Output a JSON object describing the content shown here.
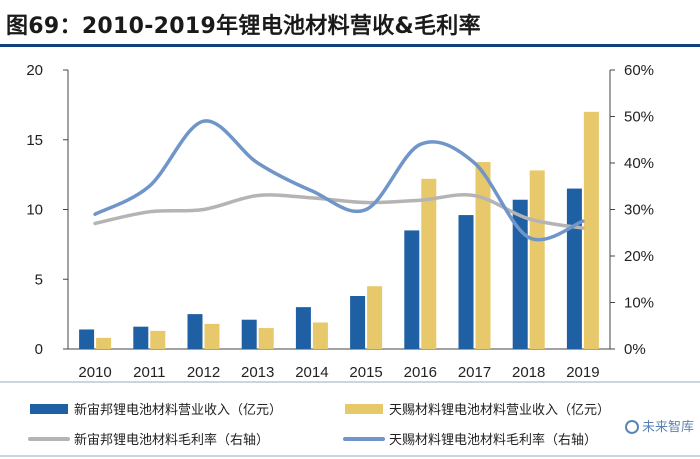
{
  "figure_title": "图69：2010-2019年锂电池材料营收&毛利率",
  "watermark": "未来智库",
  "chart_data": {
    "type": "bar+line",
    "categories": [
      "2010",
      "2011",
      "2012",
      "2013",
      "2014",
      "2015",
      "2016",
      "2017",
      "2018",
      "2019"
    ],
    "series": [
      {
        "name": "新宙邦锂电池材料营业收入（亿元）",
        "type": "bar",
        "axis": "left",
        "color": "#1f5fa3",
        "values": [
          1.4,
          1.6,
          2.5,
          2.1,
          3.0,
          3.8,
          8.5,
          9.6,
          10.7,
          11.5
        ]
      },
      {
        "name": "天赐材料锂电池材料营业收入（亿元）",
        "type": "bar",
        "axis": "left",
        "color": "#e7c86a",
        "values": [
          0.8,
          1.3,
          1.8,
          1.5,
          1.9,
          4.5,
          12.2,
          13.4,
          12.8,
          17.0
        ]
      },
      {
        "name": "新宙邦锂电池材料毛利率（右轴）",
        "type": "line",
        "axis": "right",
        "color": "#b4b4b4",
        "values": [
          27,
          29.5,
          30,
          33,
          32.5,
          31.5,
          32,
          33,
          28,
          26
        ]
      },
      {
        "name": "天赐材料锂电池材料毛利率（右轴）",
        "type": "line",
        "axis": "right",
        "color": "#6f95c9",
        "values": [
          29,
          35,
          49,
          40,
          34,
          30,
          44,
          40,
          24,
          27.5
        ]
      }
    ],
    "left_axis": {
      "min": 0,
      "max": 20,
      "ticks": [
        "0",
        "5",
        "10",
        "15",
        "20"
      ],
      "tick_values": [
        0,
        5,
        10,
        15,
        20
      ]
    },
    "right_axis": {
      "min": 0,
      "max": 60,
      "ticks": [
        "0%",
        "10%",
        "20%",
        "30%",
        "40%",
        "50%",
        "60%"
      ],
      "tick_values": [
        0,
        10,
        20,
        30,
        40,
        50,
        60
      ]
    },
    "legend": [
      {
        "label": "新宙邦锂电池材料营业收入（亿元）",
        "marker": "bar",
        "color": "#1f5fa3"
      },
      {
        "label": "天赐材料锂电池材料营业收入（亿元）",
        "marker": "bar",
        "color": "#e7c86a"
      },
      {
        "label": "新宙邦锂电池材料毛利率（右轴）",
        "marker": "line",
        "color": "#b4b4b4"
      },
      {
        "label": "天赐材料锂电池材料毛利率（右轴）",
        "marker": "line",
        "color": "#6f95c9"
      }
    ],
    "legend_position": "bottom",
    "grid": false
  }
}
